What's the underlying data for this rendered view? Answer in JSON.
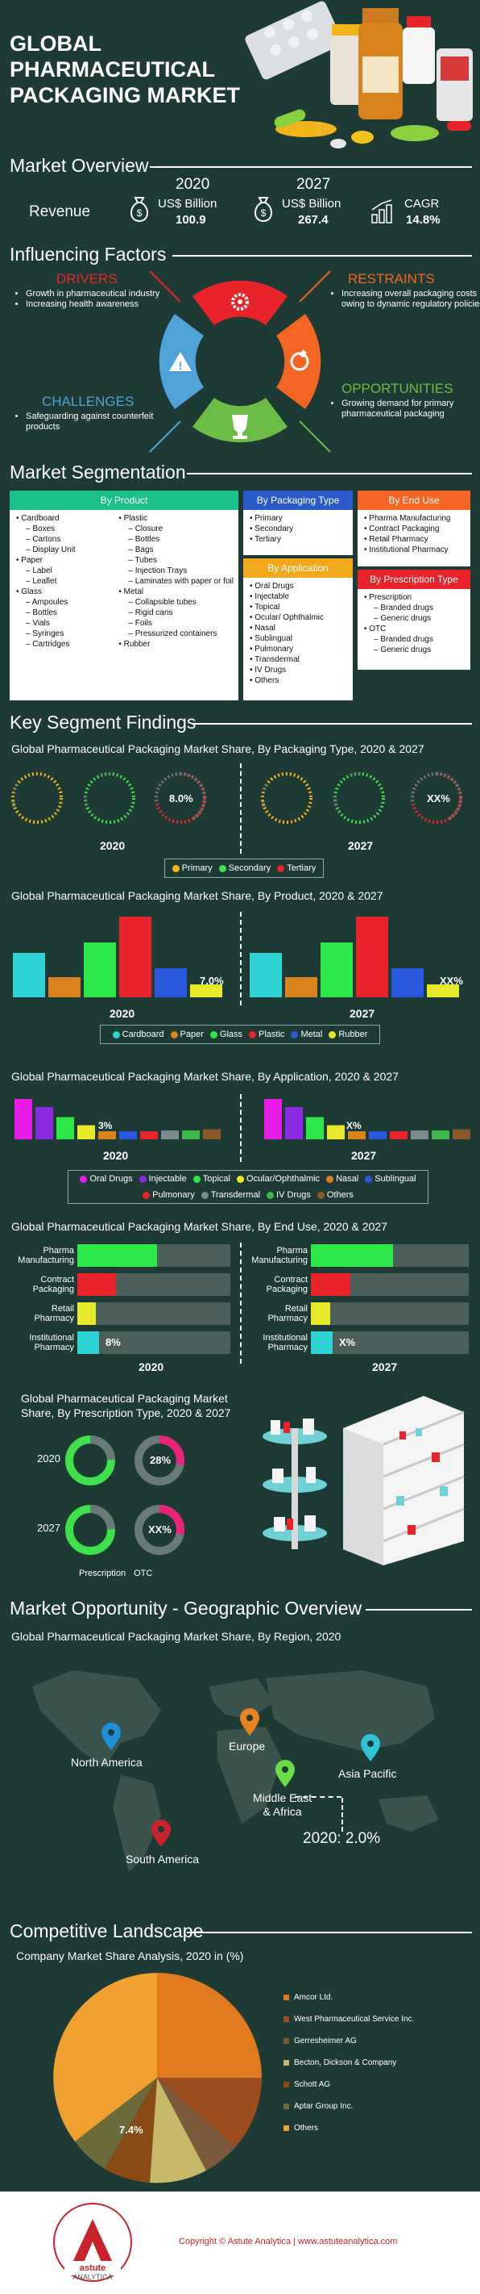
{
  "header": {
    "title_line1": "GLOBAL",
    "title_line2": "PHARMACEUTICAL",
    "title_line3": "PACKAGING MARKET"
  },
  "overview": {
    "section_title": "Market Overview",
    "revenue_label": "Revenue",
    "y2020": "2020",
    "y2027": "2027",
    "unit_2020": "US$ Billion",
    "value_2020": "100.9",
    "unit_2027": "US$ Billion",
    "value_2027": "267.4",
    "cagr_label": "CAGR",
    "cagr_value": "14.8%"
  },
  "influencing": {
    "section_title": "Influencing Factors",
    "drivers_title": "DRIVERS",
    "drivers": [
      "Growth in pharmaceutical industry",
      "Increasing  health awareness"
    ],
    "restraints_title": "RESTRAINTS",
    "restraints": [
      "Increasing overall packaging costs owing to dynamic regulatory policies"
    ],
    "challenges_title": "CHALLENGES",
    "challenges": [
      "Safeguarding against counterfeit products"
    ],
    "opportunities_title": "OPPORTUNITIES",
    "opportunities": [
      "Growing demand for primary pharmaceutical packaging"
    ],
    "colors": {
      "drivers": "#e8232a",
      "restraints": "#f26522",
      "challenges": "#4fa3d9",
      "opportunities": "#6cbd45"
    }
  },
  "segmentation": {
    "section_title": "Market Segmentation",
    "by_product": {
      "title": "By Product",
      "col1": [
        {
          "t": "Cardboard",
          "sub": false
        },
        {
          "t": "Boxes",
          "sub": true
        },
        {
          "t": "Cartons",
          "sub": true
        },
        {
          "t": "Display Unit",
          "sub": true
        },
        {
          "t": "Paper",
          "sub": false
        },
        {
          "t": "Label",
          "sub": true
        },
        {
          "t": "Leaflet",
          "sub": true
        },
        {
          "t": "Glass",
          "sub": false
        },
        {
          "t": "Ampoules",
          "sub": true
        },
        {
          "t": "Bottles",
          "sub": true
        },
        {
          "t": "Vials",
          "sub": true
        },
        {
          "t": "Syringes",
          "sub": true
        },
        {
          "t": "Cartridges",
          "sub": true
        }
      ],
      "col2": [
        {
          "t": "Plastic",
          "sub": false
        },
        {
          "t": "Closure",
          "sub": true
        },
        {
          "t": "Bottles",
          "sub": true
        },
        {
          "t": "Bags",
          "sub": true
        },
        {
          "t": "Tubes",
          "sub": true
        },
        {
          "t": "Injection Trays",
          "sub": true
        },
        {
          "t": "Laminates with paper or foil",
          "sub": true
        },
        {
          "t": "Metal",
          "sub": false
        },
        {
          "t": "Collapsible tubes",
          "sub": true
        },
        {
          "t": "Rigid cans",
          "sub": true
        },
        {
          "t": "Foils",
          "sub": true
        },
        {
          "t": "Pressurized containers",
          "sub": true
        },
        {
          "t": "Rubber",
          "sub": false
        }
      ]
    },
    "by_packaging": {
      "title": "By Packaging Type",
      "items": [
        "Primary",
        "Secondary",
        "Tertiary"
      ]
    },
    "by_application": {
      "title": "By Application",
      "items": [
        "Oral Drugs",
        "Injectable",
        "Topical",
        "Ocular/ Ophthalmic",
        "Nasal",
        "Sublingual",
        "Pulmonary",
        "Transdermal",
        "IV Drugs",
        "Others"
      ]
    },
    "by_end_use": {
      "title": "By End Use",
      "items": [
        "Pharma Manufacturing",
        "Contract Packaging",
        "Retail Pharmacy",
        "Institutional Pharmacy"
      ]
    },
    "by_prescription": {
      "title": "By Prescription Type",
      "items": [
        {
          "t": "Prescription",
          "sub": false
        },
        {
          "t": "Branded drugs",
          "sub": true
        },
        {
          "t": "Generic drugs",
          "sub": true
        },
        {
          "t": "OTC",
          "sub": false
        },
        {
          "t": "Branded drugs",
          "sub": true
        },
        {
          "t": "Generic drugs",
          "sub": true
        }
      ]
    }
  },
  "findings": {
    "section_title": "Key Segment Findings",
    "packaging_chart": {
      "title": "Global Pharmaceutical Packaging Market Share, By Packaging Type, 2020 & 2027",
      "value_2020": "8.0%",
      "value_2027": "XX%",
      "year_2020": "2020",
      "year_2027": "2027",
      "legend": [
        {
          "name": "Primary",
          "color": "#f2b41b"
        },
        {
          "name": "Secondary",
          "color": "#3fe04b"
        },
        {
          "name": "Tertiary",
          "color": "#e8232a"
        }
      ]
    },
    "product_chart": {
      "title": "Global Pharmaceutical Packaging Market Share, By Product, 2020 & 2027",
      "label_2020": "7.0%",
      "label_2027": "XX%",
      "year_2020": "2020",
      "year_2027": "2027",
      "legend": [
        {
          "name": "Cardboard",
          "color": "#2ed3d6"
        },
        {
          "name": "Paper",
          "color": "#d9831f"
        },
        {
          "name": "Glass",
          "color": "#2ee84a"
        },
        {
          "name": "Plastic",
          "color": "#e8232a"
        },
        {
          "name": "Metal",
          "color": "#2a59e0"
        },
        {
          "name": "Rubber",
          "color": "#e6e82a"
        }
      ]
    },
    "application_chart": {
      "title": "Global Pharmaceutical Packaging Market Share, By Application, 2020 & 2027",
      "label_2020": "3%",
      "label_2027": "X%",
      "year_2020": "2020",
      "year_2027": "2027",
      "legend": [
        {
          "name": "Oral Drugs",
          "color": "#e81ee8"
        },
        {
          "name": "Injectable",
          "color": "#8a2be2"
        },
        {
          "name": "Topical",
          "color": "#2ee84a"
        },
        {
          "name": "Ocular/Ophthalmic",
          "color": "#e6e82a"
        },
        {
          "name": "Nasal",
          "color": "#d9831f"
        },
        {
          "name": "Sublingual",
          "color": "#2a59e0"
        },
        {
          "name": "Pulmonary",
          "color": "#e8232a"
        },
        {
          "name": "Transdermal",
          "color": "#7c8a8a"
        },
        {
          "name": "IV Drugs",
          "color": "#3fb84a"
        },
        {
          "name": "Others",
          "color": "#8a5a2a"
        }
      ]
    },
    "end_use_chart": {
      "title": "Global Pharmaceutical Packaging Market Share, By End Use, 2020 & 2027",
      "labels": [
        "Pharma Manufacturing",
        "Contract Packaging",
        "Retail Pharmacy",
        "Institutional Pharmacy"
      ],
      "colors": [
        "#2ee84a",
        "#e8232a",
        "#e6e82a",
        "#2ed3d6"
      ],
      "label_2020": "8%",
      "label_2027": "X%",
      "year_2020": "2020",
      "year_2027": "2027"
    },
    "prescription_chart": {
      "title_line1": "Global Pharmaceutical Packaging Market",
      "title_line2": "Share, By Prescription Type, 2020 & 2027",
      "year_2020": "2020",
      "year_2027": "2027",
      "label_2020": "28%",
      "label_2027": "XX%",
      "legend": [
        {
          "name": "Prescription",
          "color": "#3fe04b"
        },
        {
          "name": "OTC",
          "color": "#e8237a"
        }
      ]
    }
  },
  "geo": {
    "section_title": "Market Opportunity - Geographic Overview",
    "subtitle": "Global Pharmaceutical Packaging Market Share, By Region, 2020",
    "regions": [
      {
        "name": "North America",
        "color": "#1e8fd9"
      },
      {
        "name": "Europe",
        "color": "#e8831f"
      },
      {
        "name": "Asia Pacific",
        "color": "#2ec3d6"
      },
      {
        "name": "Middle East & Africa",
        "color": "#6cdd45"
      },
      {
        "name": "South America",
        "color": "#c8232a"
      }
    ],
    "mea_line1": "Middle East",
    "mea_line2": "& Africa",
    "highlight": "2020: 2.0%"
  },
  "competitive": {
    "section_title": "Competitive Landscape",
    "subtitle": "Company Market Share Analysis, 2020 in  (%)",
    "pie_label": "7.4%",
    "companies": [
      {
        "name": "Amcor Ltd.",
        "color": "#e07a1f"
      },
      {
        "name": "West Pharmaceutical Service Inc.",
        "color": "#9c4d1e"
      },
      {
        "name": "Gerresheimer AG",
        "color": "#7a5a3a"
      },
      {
        "name": "Becton, Dickson & Company",
        "color": "#c8b86a"
      },
      {
        "name": "Schott AG",
        "color": "#8a4a14"
      },
      {
        "name": "Aptar Group Inc.",
        "color": "#6a6a3a"
      },
      {
        "name": "Others",
        "color": "#f0a030"
      }
    ]
  },
  "footer": {
    "copyright": "Copyright © Astute Analytica  |  www.astuteanalytica.com",
    "logo_line1": "astute",
    "logo_line2": "ANALYTICA",
    "logo_ring": "Powered by Data | Guided by Intelligence"
  }
}
